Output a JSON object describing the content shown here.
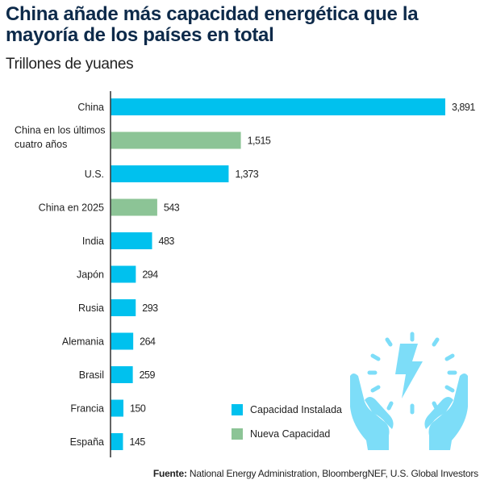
{
  "header": {
    "title": "China añade más capacidad energética que la mayoría de los países en total",
    "subtitle": "Trillones de yuanes"
  },
  "chart_data": {
    "type": "bar",
    "orientation": "horizontal",
    "title": "China añade más capacidad energética que la mayoría de los países en total",
    "subtitle": "Trillones de yuanes",
    "xlabel": "",
    "ylabel": "",
    "xlim": [
      0,
      3891
    ],
    "grid": false,
    "legend_position": "bottom-center",
    "categories": [
      "China",
      "China en los últimos cuatro años",
      "U.S.",
      "China en 2025",
      "India",
      "Japón",
      "Rusia",
      "Alemania",
      "Brasil",
      "Francia",
      "España"
    ],
    "category_lines": [
      [
        "China"
      ],
      [
        "China en los últimos",
        "cuatro años"
      ],
      [
        "U.S."
      ],
      [
        "China en 2025"
      ],
      [
        "India"
      ],
      [
        "Japón"
      ],
      [
        "Rusia"
      ],
      [
        "Alemania"
      ],
      [
        "Brasil"
      ],
      [
        "Francia"
      ],
      [
        "España"
      ]
    ],
    "values": [
      3891,
      1515,
      1373,
      543,
      483,
      294,
      293,
      264,
      259,
      150,
      145
    ],
    "value_labels": [
      "3,891",
      "1,515",
      "1,373",
      "543",
      "483",
      "294",
      "293",
      "264",
      "259",
      "150",
      "145"
    ],
    "series_of_bar": [
      "installed",
      "new",
      "installed",
      "new",
      "installed",
      "installed",
      "installed",
      "installed",
      "installed",
      "installed",
      "installed"
    ],
    "series": [
      {
        "key": "installed",
        "name": "Capacidad Instalada",
        "color": "#00c1ee"
      },
      {
        "key": "new",
        "name": "Nueva Capacidad",
        "color": "#8cc496"
      }
    ]
  },
  "legend": {
    "items": [
      {
        "label": "Capacidad Instalada",
        "color": "#00c1ee"
      },
      {
        "label": "Nueva Capacidad",
        "color": "#8cc496"
      }
    ]
  },
  "icon": {
    "name": "hands-energy-icon",
    "color": "#7dddf8"
  },
  "source": {
    "label": "Fuente:",
    "text": " National Energy Administration, BloombergNEF, U.S. Global Investors"
  }
}
